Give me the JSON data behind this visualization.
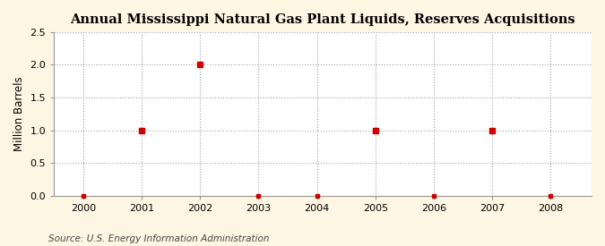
{
  "title": "Annual Mississippi Natural Gas Plant Liquids, Reserves Acquisitions",
  "ylabel": "Million Barrels",
  "source": "Source: U.S. Energy Information Administration",
  "x": [
    2000,
    2001,
    2002,
    2003,
    2004,
    2005,
    2006,
    2007,
    2008
  ],
  "y": [
    0.0,
    1.0,
    2.0,
    0.0,
    0.0,
    1.0,
    0.0,
    1.0,
    0.0
  ],
  "xlim": [
    1999.5,
    2008.7
  ],
  "ylim": [
    0.0,
    2.5
  ],
  "yticks": [
    0.0,
    0.5,
    1.0,
    1.5,
    2.0,
    2.5
  ],
  "xticks": [
    2000,
    2001,
    2002,
    2003,
    2004,
    2005,
    2006,
    2007,
    2008
  ],
  "fig_bg_color": "#fdf6e3",
  "plot_bg_color": "#ffffff",
  "marker_color": "#cc0000",
  "grid_color": "#999999",
  "spine_color": "#999999",
  "title_fontsize": 10.5,
  "label_fontsize": 8.5,
  "tick_fontsize": 8,
  "source_fontsize": 7.5
}
